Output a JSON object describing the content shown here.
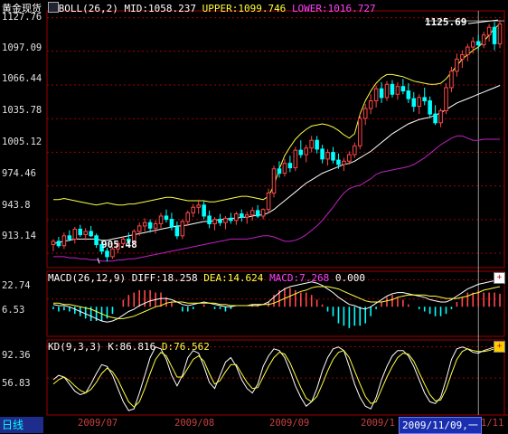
{
  "title": "黄金现货",
  "indicator_header": {
    "name": "BOLL(26,2)",
    "mid": "MID:1058.237",
    "upper": "UPPER:1099.746",
    "lower": "LOWER:1016.727"
  },
  "macd_header": {
    "name": "MACD(26,12,9)",
    "diff": "DIFF:18.258",
    "dea": "DEA:14.624",
    "macd": "MACD:7.268",
    "zero": "0.000"
  },
  "kd_header": {
    "name": "KD(9,3,3)",
    "k": "K:86.816",
    "d": "D:76.562"
  },
  "annotations": {
    "high": "1125.69",
    "low": "905.48"
  },
  "period_tab": "日线",
  "cursor_date": "2009/11/09,一",
  "x_labels": [
    "2009/07",
    "2009/08",
    "2009/09",
    "2009/1",
    "1/11"
  ],
  "colors": {
    "up": "#ff4848",
    "down": "#00ffff",
    "upper": "#ffff40",
    "mid": "#ffffff",
    "lower": "#c020c0",
    "grid": "#a00000",
    "dea": "#ffff40",
    "diff": "#ffffff"
  },
  "chart_data": [
    {
      "type": "candlestick",
      "name": "price",
      "y_ticks": [
        1127.76,
        1097.09,
        1066.44,
        1035.78,
        1005.12,
        974.46,
        943.8,
        913.14
      ],
      "ylim": [
        900,
        1134
      ],
      "lows_annotated": {
        "low": 905.48,
        "high": 1125.69
      },
      "ohlc": [
        [
          921,
          926,
          915,
          924
        ],
        [
          924,
          928,
          918,
          920
        ],
        [
          920,
          932,
          917,
          929
        ],
        [
          929,
          934,
          924,
          926
        ],
        [
          926,
          937,
          922,
          935
        ],
        [
          935,
          939,
          928,
          930
        ],
        [
          930,
          936,
          925,
          933
        ],
        [
          933,
          938,
          928,
          929
        ],
        [
          929,
          931,
          918,
          921
        ],
        [
          921,
          925,
          912,
          915
        ],
        [
          915,
          918,
          905.48,
          910
        ],
        [
          910,
          919,
          908,
          917
        ],
        [
          917,
          924,
          913,
          922
        ],
        [
          922,
          928,
          918,
          926
        ],
        [
          926,
          932,
          921,
          924
        ],
        [
          924,
          935,
          921,
          933
        ],
        [
          933,
          941,
          929,
          938
        ],
        [
          938,
          945,
          933,
          941
        ],
        [
          941,
          944,
          932,
          936
        ],
        [
          936,
          943,
          931,
          940
        ],
        [
          940,
          950,
          936,
          947
        ],
        [
          947,
          953,
          941,
          944
        ],
        [
          944,
          950,
          934,
          937
        ],
        [
          937,
          942,
          926,
          929
        ],
        [
          929,
          944,
          926,
          942
        ],
        [
          942,
          952,
          938,
          950
        ],
        [
          950,
          958,
          946,
          955
        ],
        [
          955,
          962,
          949,
          957
        ],
        [
          957,
          961,
          944,
          947
        ],
        [
          947,
          952,
          936,
          940
        ],
        [
          940,
          946,
          934,
          944
        ],
        [
          944,
          949,
          938,
          941
        ],
        [
          941,
          947,
          935,
          945
        ],
        [
          945,
          950,
          940,
          943
        ],
        [
          943,
          951,
          939,
          949
        ],
        [
          949,
          953,
          942,
          946
        ],
        [
          946,
          951,
          940,
          948
        ],
        [
          948,
          955,
          943,
          952
        ],
        [
          952,
          957,
          945,
          947
        ],
        [
          947,
          954,
          944,
          953
        ],
        [
          953,
          972,
          950,
          968
        ],
        [
          968,
          993,
          964,
          990
        ],
        [
          990,
          997,
          982,
          986
        ],
        [
          986,
          999,
          983,
          995
        ],
        [
          995,
          1002,
          987,
          991
        ],
        [
          991,
          1010,
          988,
          1007
        ],
        [
          1007,
          1016,
          1000,
          1003
        ],
        [
          1003,
          1012,
          996,
          1009
        ],
        [
          1009,
          1020,
          1005,
          1016
        ],
        [
          1016,
          1020,
          1004,
          1008
        ],
        [
          1008,
          1012,
          995,
          999
        ],
        [
          999,
          1008,
          993,
          1005
        ],
        [
          1005,
          1010,
          995,
          998
        ],
        [
          998,
          1004,
          990,
          994
        ],
        [
          994,
          1000,
          988,
          997
        ],
        [
          997,
          1006,
          994,
          1003
        ],
        [
          1003,
          1014,
          1000,
          1011
        ],
        [
          1011,
          1040,
          1008,
          1036
        ],
        [
          1036,
          1049,
          1030,
          1045
        ],
        [
          1045,
          1058,
          1040,
          1052
        ],
        [
          1052,
          1066,
          1046,
          1063
        ],
        [
          1063,
          1069,
          1050,
          1055
        ],
        [
          1055,
          1070,
          1052,
          1067
        ],
        [
          1067,
          1071,
          1055,
          1058
        ],
        [
          1058,
          1069,
          1053,
          1065
        ],
        [
          1065,
          1072,
          1058,
          1061
        ],
        [
          1061,
          1068,
          1050,
          1054
        ],
        [
          1054,
          1060,
          1042,
          1047
        ],
        [
          1047,
          1058,
          1040,
          1055
        ],
        [
          1055,
          1064,
          1048,
          1052
        ],
        [
          1052,
          1056,
          1036,
          1040
        ],
        [
          1040,
          1048,
          1030,
          1032
        ],
        [
          1032,
          1045,
          1028,
          1043
        ],
        [
          1043,
          1068,
          1040,
          1064
        ],
        [
          1064,
          1083,
          1060,
          1079
        ],
        [
          1079,
          1095,
          1074,
          1090
        ],
        [
          1090,
          1098,
          1082,
          1094
        ],
        [
          1094,
          1104,
          1088,
          1101
        ],
        [
          1101,
          1110,
          1095,
          1106
        ],
        [
          1106,
          1112,
          1098,
          1103
        ],
        [
          1103,
          1115,
          1100,
          1112
        ],
        [
          1112,
          1122,
          1106,
          1119
        ],
        [
          1119,
          1124,
          1098,
          1104
        ],
        [
          1104,
          1125.69,
          1100,
          1122
        ]
      ],
      "upper": [
        962,
        962,
        963,
        962,
        961,
        960,
        959,
        958,
        957,
        958,
        959,
        958,
        957,
        957,
        958,
        958,
        959,
        960,
        961,
        962,
        963,
        964,
        964,
        963,
        962,
        961,
        961,
        961,
        961,
        960,
        960,
        961,
        962,
        963,
        964,
        965,
        965,
        964,
        963,
        962,
        965,
        975,
        990,
        1002,
        1010,
        1017,
        1022,
        1026,
        1029,
        1030,
        1031,
        1030,
        1028,
        1025,
        1021,
        1018,
        1022,
        1040,
        1052,
        1061,
        1068,
        1073,
        1076,
        1076,
        1075,
        1074,
        1072,
        1070,
        1069,
        1068,
        1067,
        1067,
        1068,
        1072,
        1078,
        1084,
        1090,
        1094,
        1098,
        1101,
        1106,
        1112,
        1118,
        1122
      ],
      "mid": [
        922,
        923,
        924,
        925,
        926,
        926,
        926,
        926,
        926,
        925,
        925,
        926,
        927,
        928,
        929,
        930,
        931,
        932,
        933,
        934,
        935,
        936,
        937,
        938,
        938,
        939,
        940,
        941,
        942,
        942,
        943,
        944,
        944,
        945,
        945,
        946,
        946,
        947,
        948,
        948,
        950,
        953,
        957,
        961,
        965,
        969,
        973,
        977,
        980,
        983,
        986,
        988,
        990,
        992,
        994,
        995,
        997,
        1000,
        1003,
        1006,
        1010,
        1014,
        1018,
        1022,
        1025,
        1028,
        1031,
        1033,
        1035,
        1036,
        1037,
        1039,
        1041,
        1044,
        1047,
        1050,
        1052,
        1054,
        1056,
        1058,
        1060,
        1062,
        1064,
        1066
      ],
      "lower": [
        910,
        910,
        910,
        909,
        909,
        908,
        908,
        907,
        907,
        906,
        906,
        906,
        907,
        907,
        908,
        908,
        909,
        910,
        911,
        912,
        913,
        914,
        915,
        916,
        917,
        918,
        919,
        920,
        921,
        922,
        923,
        924,
        925,
        926,
        926,
        926,
        926,
        927,
        928,
        929,
        929,
        928,
        926,
        924,
        924,
        925,
        927,
        930,
        934,
        938,
        943,
        949,
        955,
        962,
        968,
        972,
        974,
        975,
        978,
        981,
        985,
        987,
        988,
        989,
        990,
        991,
        992,
        994,
        997,
        1000,
        1004,
        1008,
        1012,
        1015,
        1018,
        1020,
        1020,
        1018,
        1016,
        1016,
        1017,
        1017,
        1017,
        1017
      ]
    },
    {
      "type": "macd",
      "name": "MACD",
      "y_ticks": [
        22.74,
        6.53
      ],
      "ylim": [
        -25,
        30
      ],
      "diff": [
        2,
        1,
        1,
        0,
        -2,
        -4,
        -6,
        -8,
        -10,
        -12,
        -13,
        -12,
        -10,
        -7,
        -4,
        -2,
        1,
        3,
        5,
        6,
        7,
        7,
        6,
        4,
        2,
        1,
        2,
        3,
        4,
        3,
        2,
        1,
        0,
        0,
        1,
        1,
        1,
        2,
        2,
        2,
        4,
        8,
        12,
        15,
        17,
        18,
        19,
        20,
        21,
        20,
        18,
        15,
        12,
        8,
        5,
        2,
        1,
        -1,
        -2,
        0,
        3,
        6,
        9,
        11,
        12,
        12,
        11,
        10,
        9,
        8,
        6,
        5,
        4,
        4,
        6,
        9,
        12,
        15,
        17,
        19,
        20,
        21,
        22,
        22.7
      ],
      "dea": [
        3,
        3,
        2,
        2,
        1,
        0,
        -1,
        -2,
        -4,
        -6,
        -8,
        -9,
        -10,
        -10,
        -9,
        -8,
        -6,
        -4,
        -2,
        0,
        1,
        3,
        4,
        4,
        4,
        3,
        3,
        3,
        3,
        3,
        3,
        2,
        2,
        1,
        1,
        1,
        1,
        1,
        1,
        2,
        2,
        3,
        5,
        7,
        9,
        11,
        13,
        14,
        16,
        17,
        17,
        17,
        16,
        15,
        13,
        11,
        9,
        7,
        5,
        4,
        4,
        4,
        5,
        6,
        8,
        9,
        10,
        10,
        10,
        10,
        9,
        9,
        8,
        7,
        7,
        7,
        8,
        9,
        11,
        12,
        14,
        15,
        16,
        17
      ],
      "hist": [
        -2,
        -4,
        -3,
        -4,
        -6,
        -8,
        -10,
        -12,
        -12,
        -12,
        -10,
        -6,
        0,
        6,
        10,
        12,
        14,
        14,
        14,
        12,
        12,
        8,
        4,
        0,
        -4,
        -4,
        -2,
        0,
        2,
        0,
        -2,
        -2,
        -4,
        -2,
        0,
        0,
        0,
        2,
        2,
        0,
        4,
        10,
        14,
        16,
        16,
        14,
        12,
        12,
        10,
        6,
        2,
        -4,
        -8,
        -14,
        -16,
        -18,
        -16,
        -16,
        -14,
        -8,
        -2,
        4,
        8,
        10,
        8,
        6,
        2,
        0,
        -2,
        -4,
        -6,
        -8,
        -8,
        -6,
        -2,
        4,
        8,
        12,
        12,
        14,
        12,
        12,
        12,
        11
      ]
    },
    {
      "type": "line",
      "name": "KD",
      "y_ticks": [
        92.36,
        56.83
      ],
      "ylim": [
        15,
        100
      ],
      "k": [
        55,
        60,
        58,
        50,
        42,
        38,
        40,
        50,
        62,
        72,
        70,
        60,
        45,
        30,
        20,
        22,
        40,
        60,
        80,
        92,
        90,
        78,
        60,
        48,
        60,
        80,
        88,
        85,
        70,
        52,
        45,
        60,
        75,
        80,
        70,
        55,
        45,
        40,
        50,
        70,
        82,
        90,
        88,
        80,
        65,
        48,
        35,
        25,
        30,
        45,
        65,
        80,
        90,
        92,
        88,
        70,
        50,
        35,
        25,
        22,
        35,
        55,
        70,
        82,
        88,
        88,
        82,
        70,
        55,
        40,
        30,
        28,
        35,
        55,
        78,
        90,
        92,
        90,
        86,
        85,
        88,
        90,
        92,
        95
      ],
      "d": [
        50,
        55,
        58,
        54,
        48,
        43,
        40,
        44,
        52,
        62,
        68,
        64,
        55,
        42,
        30,
        24,
        30,
        45,
        62,
        78,
        86,
        82,
        70,
        58,
        58,
        68,
        78,
        82,
        76,
        62,
        50,
        54,
        64,
        72,
        72,
        62,
        52,
        45,
        46,
        58,
        70,
        80,
        86,
        84,
        74,
        60,
        46,
        34,
        30,
        36,
        50,
        65,
        78,
        86,
        88,
        80,
        65,
        50,
        36,
        28,
        30,
        44,
        58,
        70,
        80,
        85,
        84,
        76,
        63,
        50,
        38,
        31,
        32,
        44,
        62,
        78,
        87,
        90,
        88,
        87,
        87,
        88,
        90,
        92
      ]
    }
  ]
}
